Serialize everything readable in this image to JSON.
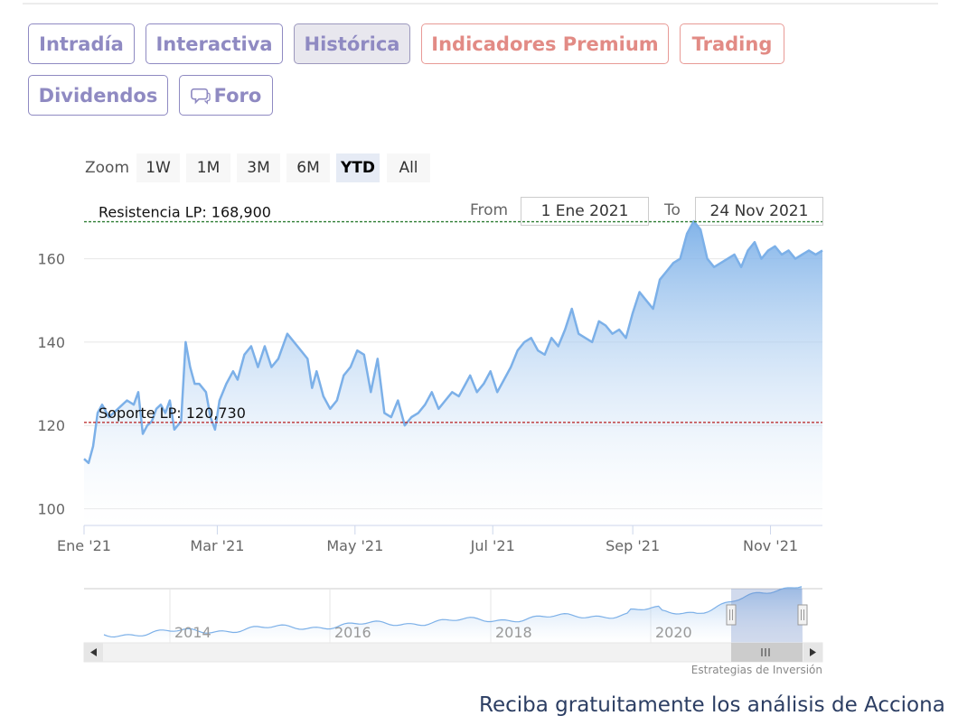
{
  "tabs": [
    {
      "label": "Intradía",
      "style": "normal"
    },
    {
      "label": "Interactiva",
      "style": "normal"
    },
    {
      "label": "Histórica",
      "style": "active"
    },
    {
      "label": "Indicadores Premium",
      "style": "red"
    },
    {
      "label": "Trading",
      "style": "red"
    },
    {
      "label": "Dividendos",
      "style": "normal"
    },
    {
      "label": "Foro",
      "style": "normal",
      "icon": "chat-bubble-icon"
    }
  ],
  "zoom": {
    "label": "Zoom",
    "buttons": [
      "1W",
      "1M",
      "3M",
      "6M",
      "YTD",
      "All"
    ],
    "selected": "YTD"
  },
  "range": {
    "from_label": "From",
    "from_value": "1 Ene 2021",
    "to_label": "To",
    "to_value": "24 Nov 2021"
  },
  "chart_data": {
    "type": "area",
    "title": "",
    "xlabel": "",
    "ylabel": "",
    "ylim": [
      96,
      174
    ],
    "y_ticks": [
      100,
      120,
      140,
      160
    ],
    "x_ticks": [
      {
        "label": "Ene '21",
        "x": "2021-01-01"
      },
      {
        "label": "Mar '21",
        "x": "2021-03-01"
      },
      {
        "label": "May '21",
        "x": "2021-05-01"
      },
      {
        "label": "Jul '21",
        "x": "2021-07-01"
      },
      {
        "label": "Sep '21",
        "x": "2021-09-01"
      },
      {
        "label": "Nov '21",
        "x": "2021-11-01"
      }
    ],
    "x_range": [
      "2021-01-01",
      "2021-11-24"
    ],
    "series": [
      {
        "color": "#7cb0e8",
        "x": [
          "2021-01-01",
          "2021-01-03",
          "2021-01-05",
          "2021-01-07",
          "2021-01-09",
          "2021-01-12",
          "2021-01-16",
          "2021-01-20",
          "2021-01-23",
          "2021-01-25",
          "2021-01-27",
          "2021-01-29",
          "2021-01-31",
          "2021-02-02",
          "2021-02-04",
          "2021-02-06",
          "2021-02-08",
          "2021-02-10",
          "2021-02-13",
          "2021-02-15",
          "2021-02-17",
          "2021-02-19",
          "2021-02-21",
          "2021-02-24",
          "2021-02-26",
          "2021-02-28",
          "2021-03-02",
          "2021-03-05",
          "2021-03-08",
          "2021-03-10",
          "2021-03-13",
          "2021-03-16",
          "2021-03-19",
          "2021-03-22",
          "2021-03-25",
          "2021-03-28",
          "2021-04-01",
          "2021-04-04",
          "2021-04-07",
          "2021-04-10",
          "2021-04-12",
          "2021-04-14",
          "2021-04-17",
          "2021-04-20",
          "2021-04-23",
          "2021-04-26",
          "2021-04-29",
          "2021-05-02",
          "2021-05-05",
          "2021-05-08",
          "2021-05-11",
          "2021-05-14",
          "2021-05-17",
          "2021-05-20",
          "2021-05-23",
          "2021-05-26",
          "2021-05-29",
          "2021-06-01",
          "2021-06-04",
          "2021-06-07",
          "2021-06-10",
          "2021-06-13",
          "2021-06-16",
          "2021-06-19",
          "2021-06-21",
          "2021-06-24",
          "2021-06-27",
          "2021-06-30",
          "2021-07-03",
          "2021-07-06",
          "2021-07-09",
          "2021-07-12",
          "2021-07-15",
          "2021-07-18",
          "2021-07-21",
          "2021-07-24",
          "2021-07-27",
          "2021-07-30",
          "2021-08-02",
          "2021-08-05",
          "2021-08-08",
          "2021-08-11",
          "2021-08-14",
          "2021-08-17",
          "2021-08-20",
          "2021-08-23",
          "2021-08-26",
          "2021-08-29",
          "2021-09-01",
          "2021-09-04",
          "2021-09-07",
          "2021-09-10",
          "2021-09-13",
          "2021-09-16",
          "2021-09-19",
          "2021-09-22",
          "2021-09-25",
          "2021-09-28",
          "2021-10-01",
          "2021-10-04",
          "2021-10-07",
          "2021-10-10",
          "2021-10-13",
          "2021-10-16",
          "2021-10-19",
          "2021-10-22",
          "2021-10-25",
          "2021-10-28",
          "2021-10-31",
          "2021-11-03",
          "2021-11-06",
          "2021-11-09",
          "2021-11-12",
          "2021-11-15",
          "2021-11-18",
          "2021-11-21",
          "2021-11-24"
        ],
        "values": [
          112,
          111,
          115,
          123,
          125,
          122,
          124,
          126,
          125,
          128,
          118,
          120,
          121,
          124,
          125,
          123,
          126,
          119,
          121,
          140,
          134,
          130,
          130,
          128,
          122,
          119,
          126,
          130,
          133,
          131,
          137,
          139,
          134,
          139,
          134,
          136,
          142,
          140,
          138,
          136,
          129,
          133,
          127,
          124,
          126,
          132,
          134,
          138,
          137,
          128,
          136,
          123,
          122,
          126,
          120,
          122,
          123,
          125,
          128,
          124,
          126,
          128,
          127,
          130,
          132,
          128,
          130,
          133,
          128,
          131,
          134,
          138,
          140,
          141,
          138,
          137,
          141,
          139,
          143,
          148,
          142,
          141,
          140,
          145,
          144,
          142,
          143,
          141,
          147,
          152,
          150,
          148,
          155,
          157,
          159,
          160,
          166,
          169,
          167,
          160,
          158,
          159,
          160,
          161,
          158,
          162,
          164,
          160,
          162,
          163,
          161,
          162,
          160,
          161,
          162,
          161,
          162
        ]
      }
    ],
    "plot_lines": [
      {
        "label": "Resistencia LP: 168,900",
        "value": 168.9,
        "color": "#2e7d32"
      },
      {
        "label": "Soporte LP: 120,730",
        "value": 120.73,
        "color": "#b71c1c"
      }
    ],
    "navigator": {
      "labels": [
        "2014",
        "2016",
        "2018",
        "2020"
      ]
    },
    "grid": true,
    "legend": "none"
  },
  "credit": "Estrategias de Inversión",
  "promo": "Reciba gratuitamente los análisis de Acciona"
}
